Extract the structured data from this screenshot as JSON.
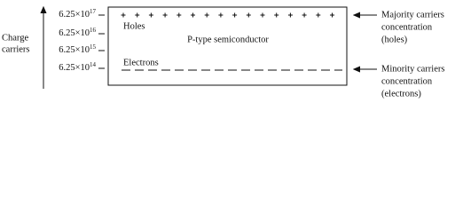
{
  "y_axis": {
    "label_lines": [
      "Charge",
      "carriers"
    ]
  },
  "levels": [
    {
      "base": "6.25×10",
      "exponent": "17"
    },
    {
      "base": "6.25×10",
      "exponent": "16"
    },
    {
      "base": "6.25×10",
      "exponent": "15"
    },
    {
      "base": "6.25×10",
      "exponent": "14"
    }
  ],
  "box": {
    "title": "P-type semiconductor",
    "majority_label": "Holes",
    "minority_label": "Electrons"
  },
  "annotations": [
    {
      "lines": [
        "Majority carriers",
        "concentration",
        "(holes)"
      ]
    },
    {
      "lines": [
        "Minority carriers",
        "concentration",
        "(electrons)"
      ]
    }
  ]
}
